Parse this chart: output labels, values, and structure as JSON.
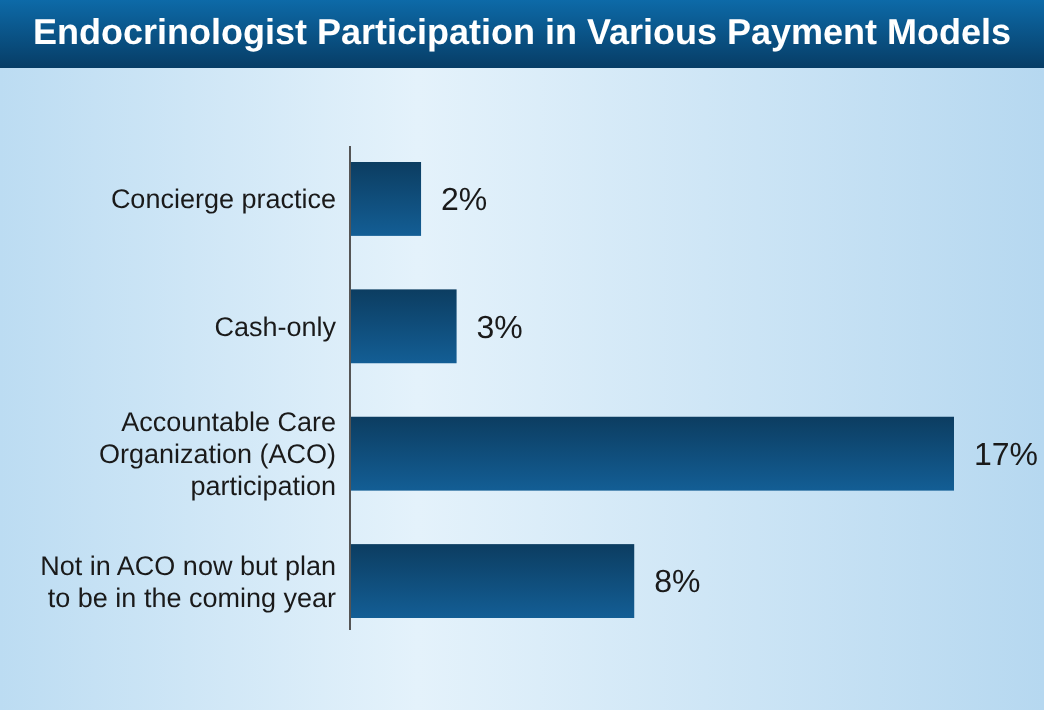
{
  "chart_data": {
    "type": "bar",
    "title": "Endocrinologist Participation in Various Payment Models",
    "orientation": "horizontal",
    "categories": [
      "Concierge practice",
      "Cash-only",
      "Accountable Care Organization (ACO) participation",
      "Not in ACO now but plan to be in the coming year"
    ],
    "values": [
      2,
      3,
      17,
      8
    ],
    "color": "#0f4c78",
    "xlim": [
      0,
      17
    ],
    "data_labels": true,
    "value_labels": [
      "2%",
      "3%",
      "17%",
      "8%"
    ]
  }
}
